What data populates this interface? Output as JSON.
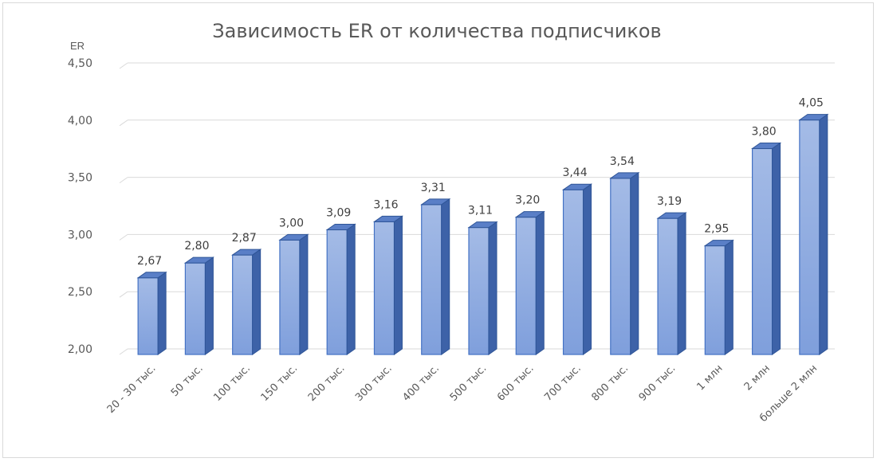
{
  "chart_data": {
    "type": "bar",
    "title": "Зависимость ER от количества подписчиков",
    "ylabel": "ER",
    "xlabel": "",
    "ylim": [
      2.0,
      4.5
    ],
    "yticks": [
      "2,00",
      "2,50",
      "3,00",
      "3,50",
      "4,00",
      "4,50"
    ],
    "grid": true,
    "legend": "none",
    "bar_color": "#8ea9db",
    "categories": [
      "20 - 30 тыс.",
      "50 тыс.",
      "100 тыс.",
      "150 тыс.",
      "200 тыс.",
      "300 тыс.",
      "400 тыс.",
      "500 тыс.",
      "600 тыс.",
      "700 тыс.",
      "800 тыс.",
      "900 тыс.",
      "1 млн",
      "2 млн",
      "больше 2 млн"
    ],
    "values": [
      2.67,
      2.8,
      2.87,
      3.0,
      3.09,
      3.16,
      3.31,
      3.11,
      3.2,
      3.44,
      3.54,
      3.19,
      2.95,
      3.8,
      4.05
    ],
    "data_labels": [
      "2,67",
      "2,80",
      "2,87",
      "3,00",
      "3,09",
      "3,16",
      "3,31",
      "3,11",
      "3,20",
      "3,44",
      "3,54",
      "3,19",
      "2,95",
      "3,80",
      "4,05"
    ]
  }
}
